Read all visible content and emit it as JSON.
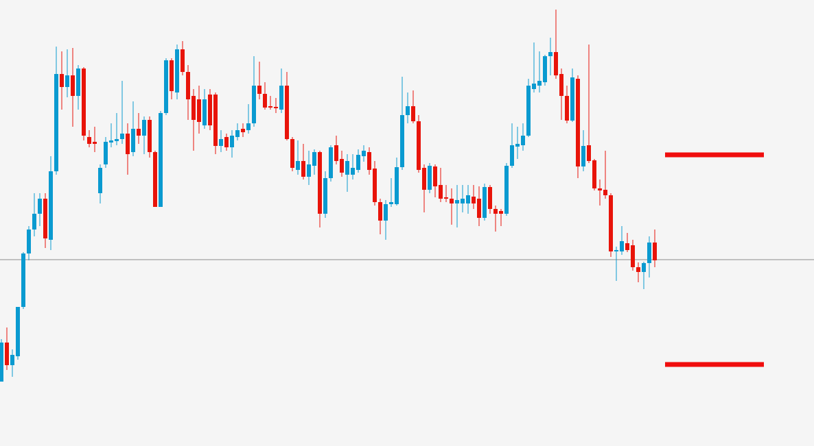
{
  "chart_data": {
    "type": "candlestick",
    "ylim": [
      0,
      651
    ],
    "up_color": "#0a9ad0",
    "down_color": "#e8140a",
    "hline": {
      "value": 272,
      "color": "#8a8a8a"
    },
    "levels": {
      "values": [
        425,
        119
      ],
      "color": "#f00e0e"
    },
    "open": [
      94,
      151,
      118,
      131,
      203,
      281,
      316,
      339,
      361,
      301,
      401,
      543,
      524,
      541,
      511,
      551,
      451,
      444,
      369,
      411,
      443,
      445,
      448,
      456,
      429,
      463,
      453,
      476,
      429,
      349,
      486,
      563,
      516,
      579,
      546,
      511,
      506,
      468,
      513,
      513,
      438,
      451,
      436,
      451,
      463,
      461,
      471,
      526,
      514,
      496,
      495,
      491,
      526,
      448,
      403,
      416,
      393,
      409,
      429,
      339,
      391,
      439,
      419,
      396,
      396,
      403,
      423,
      429,
      405,
      356,
      329,
      353,
      353,
      407,
      483,
      496,
      474,
      406,
      374,
      408,
      381,
      363,
      361,
      354,
      354,
      354,
      364,
      361,
      333,
      378,
      346,
      343,
      339,
      409,
      437,
      439,
      453,
      521,
      526,
      531,
      569,
      575,
      543,
      511,
      475,
      536,
      408,
      439,
      417,
      376,
      374,
      366,
      284,
      284,
      296,
      293,
      261,
      254,
      267,
      297
    ],
    "high": [
      156,
      173,
      141,
      203,
      283,
      321,
      369,
      369,
      369,
      423,
      583,
      576,
      579,
      581,
      556,
      553,
      461,
      466,
      411,
      451,
      471,
      486,
      533,
      471,
      503,
      486,
      481,
      481,
      431,
      489,
      566,
      566,
      586,
      591,
      556,
      521,
      526,
      521,
      521,
      516,
      461,
      456,
      461,
      471,
      471,
      499,
      569,
      561,
      531,
      511,
      508,
      551,
      546,
      451,
      446,
      441,
      431,
      433,
      431,
      401,
      439,
      453,
      431,
      426,
      426,
      433,
      439,
      436,
      416,
      361,
      359,
      391,
      421,
      539,
      516,
      519,
      483,
      411,
      413,
      411,
      406,
      381,
      376,
      381,
      381,
      381,
      381,
      379,
      383,
      381,
      351,
      346,
      413,
      471,
      466,
      471,
      536,
      589,
      576,
      571,
      596,
      637,
      551,
      526,
      551,
      541,
      461,
      586,
      419,
      389,
      431,
      369,
      291,
      321,
      311,
      301,
      268,
      269,
      306,
      316
    ],
    "low": [
      94,
      111,
      101,
      126,
      200,
      271,
      306,
      321,
      289,
      286,
      396,
      491,
      509,
      466,
      491,
      446,
      436,
      429,
      354,
      406,
      436,
      439,
      441,
      396,
      423,
      441,
      426,
      421,
      349,
      349,
      483,
      506,
      506,
      541,
      476,
      431,
      456,
      463,
      461,
      426,
      429,
      431,
      421,
      446,
      451,
      456,
      466,
      506,
      491,
      491,
      486,
      486,
      446,
      401,
      396,
      389,
      381,
      396,
      319,
      333,
      386,
      411,
      393,
      371,
      389,
      399,
      415,
      396,
      351,
      309,
      301,
      349,
      351,
      403,
      471,
      471,
      399,
      341,
      369,
      363,
      356,
      356,
      323,
      319,
      341,
      339,
      346,
      321,
      329,
      339,
      313,
      321,
      336,
      406,
      419,
      431,
      451,
      516,
      516,
      526,
      541,
      536,
      476,
      471,
      473,
      391,
      401,
      413,
      373,
      351,
      361,
      276,
      241,
      279,
      283,
      256,
      239,
      229,
      246,
      261
    ],
    "close": [
      151,
      118,
      133,
      203,
      281,
      316,
      339,
      361,
      303,
      401,
      543,
      524,
      541,
      511,
      551,
      453,
      441,
      441,
      406,
      444,
      446,
      448,
      456,
      426,
      463,
      453,
      476,
      429,
      349,
      486,
      563,
      518,
      579,
      546,
      506,
      476,
      473,
      506,
      468,
      438,
      448,
      436,
      453,
      461,
      458,
      471,
      526,
      514,
      494,
      494,
      493,
      526,
      448,
      406,
      416,
      393,
      411,
      429,
      339,
      391,
      436,
      416,
      399,
      416,
      406,
      425,
      431,
      403,
      356,
      329,
      353,
      356,
      407,
      483,
      496,
      474,
      403,
      374,
      409,
      379,
      361,
      361,
      354,
      359,
      361,
      366,
      354,
      333,
      378,
      346,
      339,
      339,
      409,
      439,
      441,
      453,
      526,
      529,
      533,
      569,
      575,
      541,
      511,
      475,
      538,
      408,
      438,
      416,
      376,
      373,
      366,
      284,
      286,
      299,
      286,
      261,
      254,
      267,
      297,
      271
    ]
  }
}
